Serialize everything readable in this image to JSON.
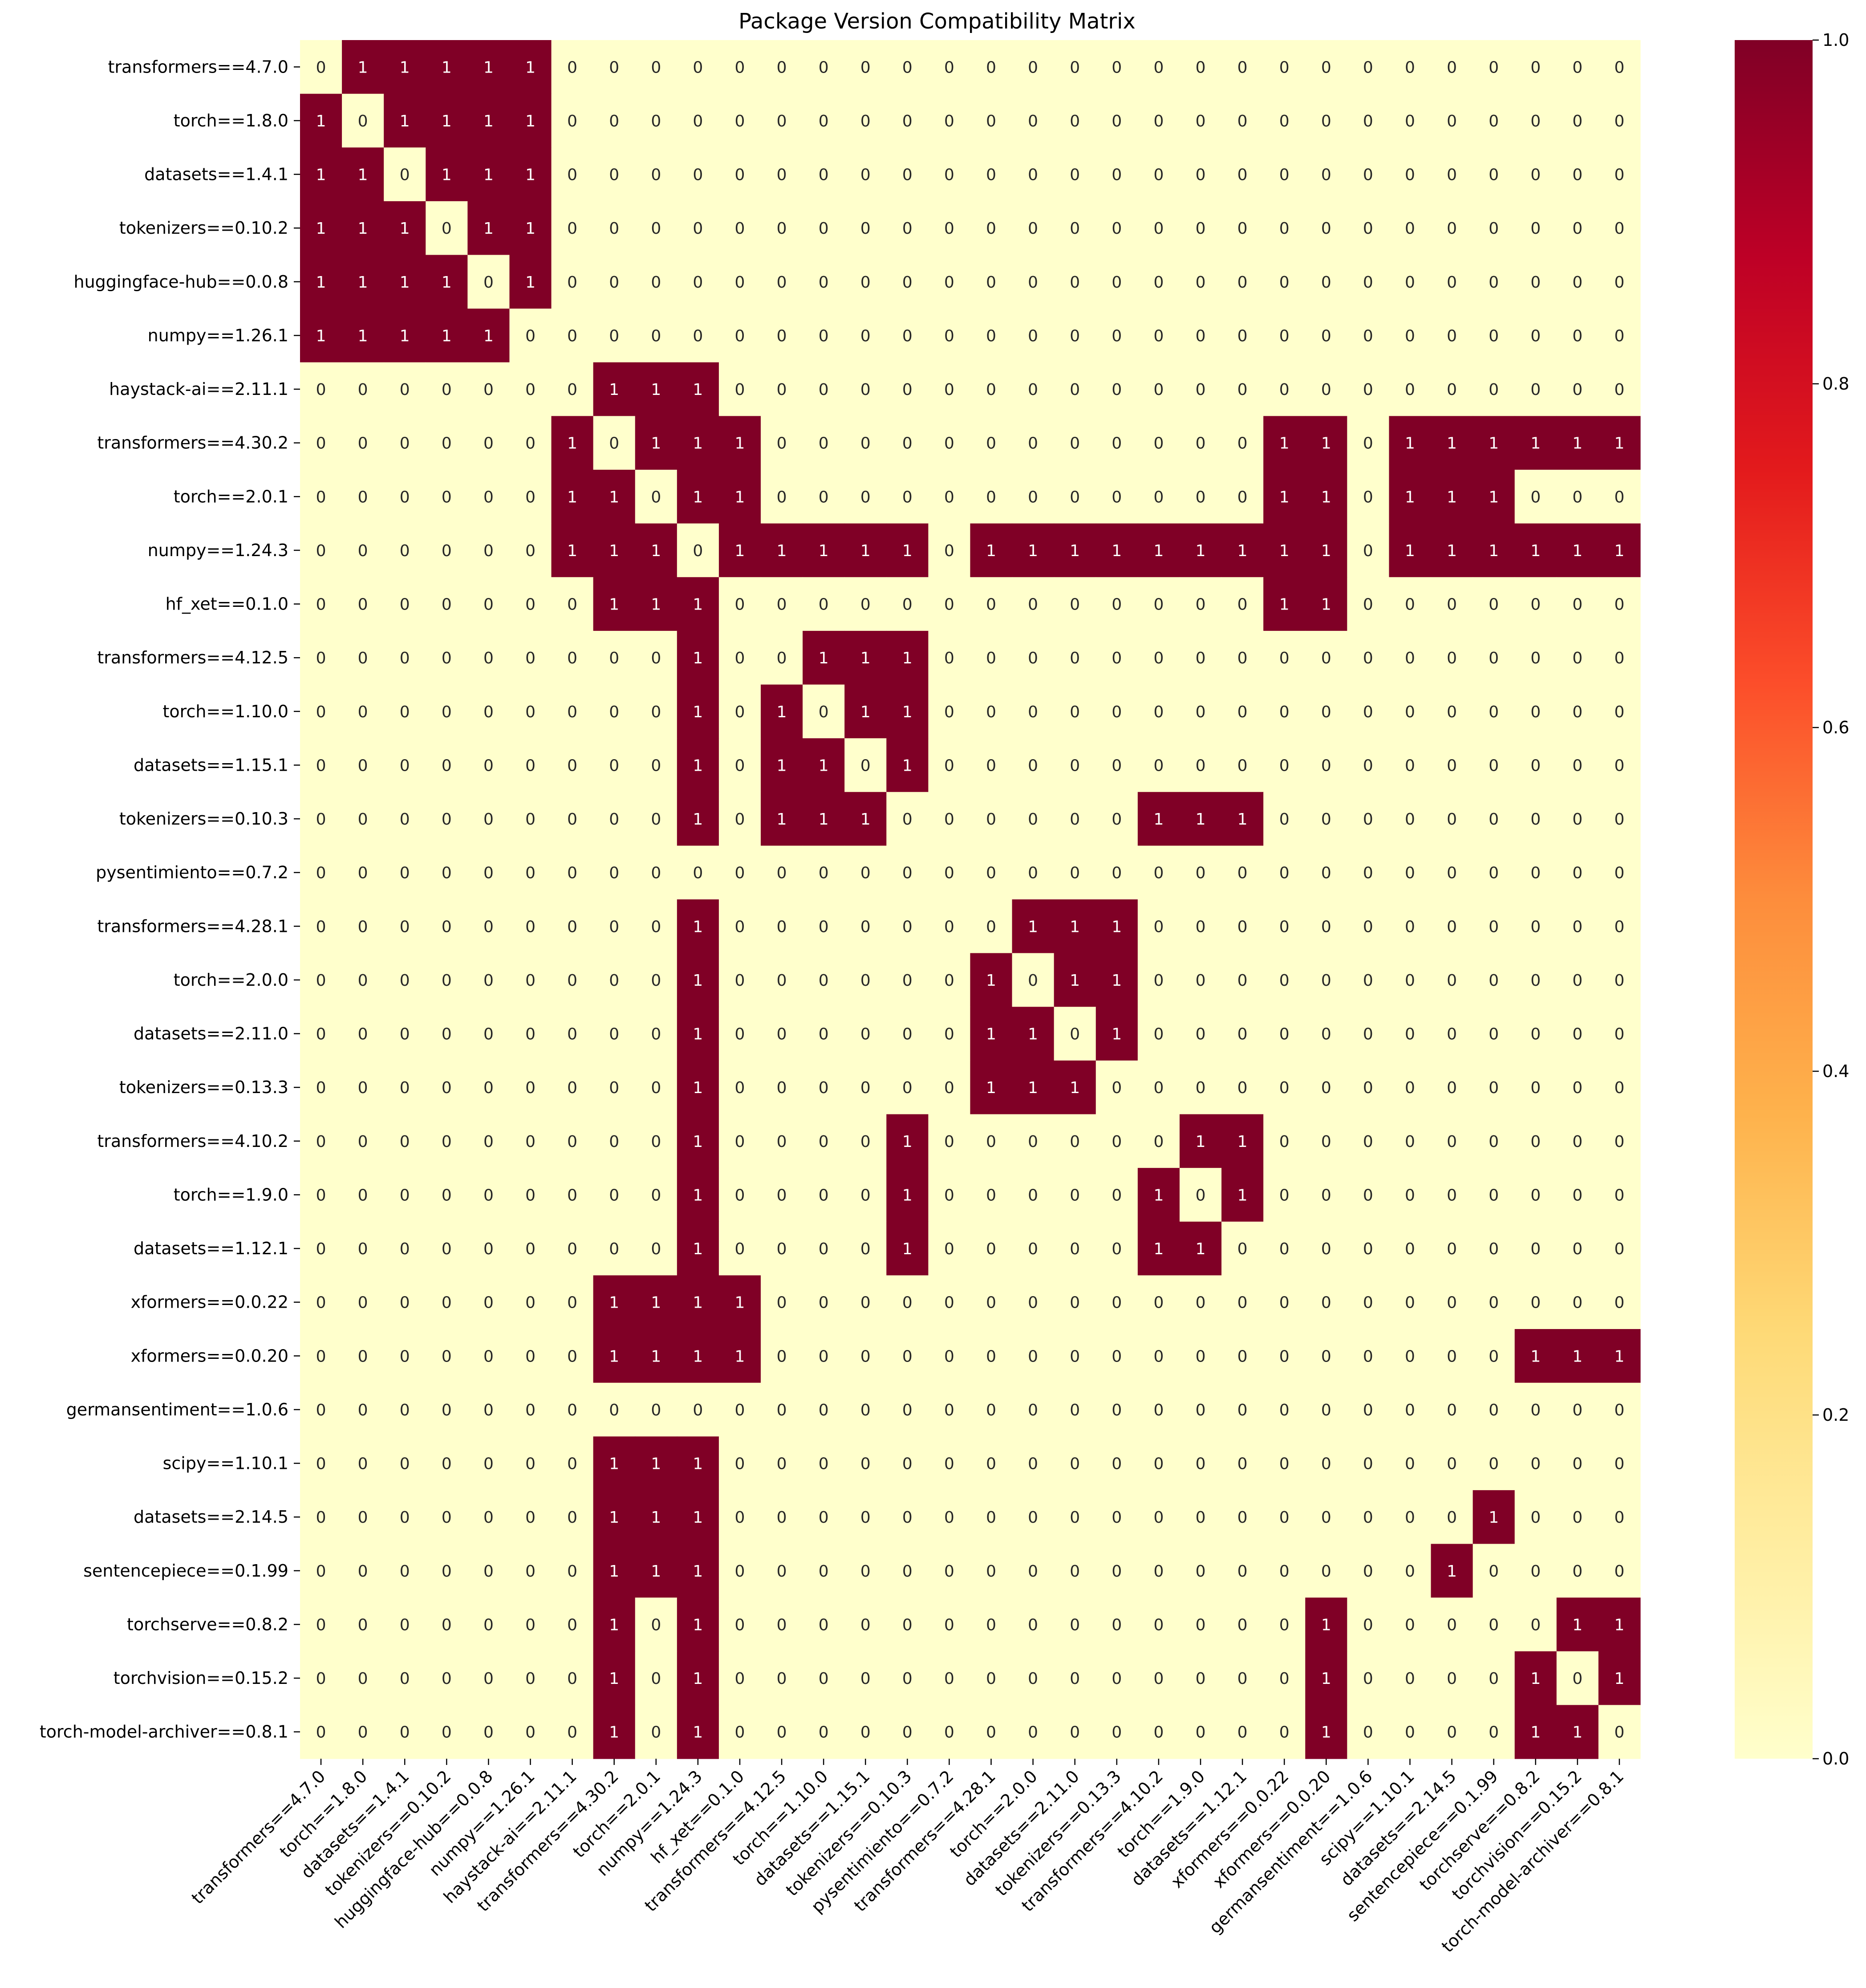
{
  "chart_data": {
    "type": "heatmap",
    "title": "Package Version Compatibility Matrix",
    "xlabel": "",
    "ylabel": "",
    "labels": [
      "transformers==4.7.0",
      "torch==1.8.0",
      "datasets==1.4.1",
      "tokenizers==0.10.2",
      "huggingface-hub==0.0.8",
      "numpy==1.26.1",
      "haystack-ai==2.11.1",
      "transformers==4.30.2",
      "torch==2.0.1",
      "numpy==1.24.3",
      "hf_xet==0.1.0",
      "transformers==4.12.5",
      "torch==1.10.0",
      "datasets==1.15.1",
      "tokenizers==0.10.3",
      "pysentimiento==0.7.2",
      "transformers==4.28.1",
      "torch==2.0.0",
      "datasets==2.11.0",
      "tokenizers==0.13.3",
      "transformers==4.10.2",
      "torch==1.9.0",
      "datasets==1.12.1",
      "xformers==0.0.22",
      "xformers==0.0.20",
      "germansentiment==1.0.6",
      "scipy==1.10.1",
      "datasets==2.14.5",
      "sentencepiece==0.1.99",
      "torchserve==0.8.2",
      "torchvision==0.15.2",
      "torch-model-archiver==0.8.1"
    ],
    "matrix": [
      [
        0,
        1,
        1,
        1,
        1,
        1,
        0,
        0,
        0,
        0,
        0,
        0,
        0,
        0,
        0,
        0,
        0,
        0,
        0,
        0,
        0,
        0,
        0,
        0,
        0,
        0,
        0,
        0,
        0,
        0,
        0,
        0
      ],
      [
        1,
        0,
        1,
        1,
        1,
        1,
        0,
        0,
        0,
        0,
        0,
        0,
        0,
        0,
        0,
        0,
        0,
        0,
        0,
        0,
        0,
        0,
        0,
        0,
        0,
        0,
        0,
        0,
        0,
        0,
        0,
        0
      ],
      [
        1,
        1,
        0,
        1,
        1,
        1,
        0,
        0,
        0,
        0,
        0,
        0,
        0,
        0,
        0,
        0,
        0,
        0,
        0,
        0,
        0,
        0,
        0,
        0,
        0,
        0,
        0,
        0,
        0,
        0,
        0,
        0
      ],
      [
        1,
        1,
        1,
        0,
        1,
        1,
        0,
        0,
        0,
        0,
        0,
        0,
        0,
        0,
        0,
        0,
        0,
        0,
        0,
        0,
        0,
        0,
        0,
        0,
        0,
        0,
        0,
        0,
        0,
        0,
        0,
        0
      ],
      [
        1,
        1,
        1,
        1,
        0,
        1,
        0,
        0,
        0,
        0,
        0,
        0,
        0,
        0,
        0,
        0,
        0,
        0,
        0,
        0,
        0,
        0,
        0,
        0,
        0,
        0,
        0,
        0,
        0,
        0,
        0,
        0
      ],
      [
        1,
        1,
        1,
        1,
        1,
        0,
        0,
        0,
        0,
        0,
        0,
        0,
        0,
        0,
        0,
        0,
        0,
        0,
        0,
        0,
        0,
        0,
        0,
        0,
        0,
        0,
        0,
        0,
        0,
        0,
        0,
        0
      ],
      [
        0,
        0,
        0,
        0,
        0,
        0,
        0,
        1,
        1,
        1,
        0,
        0,
        0,
        0,
        0,
        0,
        0,
        0,
        0,
        0,
        0,
        0,
        0,
        0,
        0,
        0,
        0,
        0,
        0,
        0,
        0,
        0
      ],
      [
        0,
        0,
        0,
        0,
        0,
        0,
        1,
        0,
        1,
        1,
        1,
        0,
        0,
        0,
        0,
        0,
        0,
        0,
        0,
        0,
        0,
        0,
        0,
        1,
        1,
        0,
        1,
        1,
        1,
        1,
        1,
        1
      ],
      [
        0,
        0,
        0,
        0,
        0,
        0,
        1,
        1,
        0,
        1,
        1,
        0,
        0,
        0,
        0,
        0,
        0,
        0,
        0,
        0,
        0,
        0,
        0,
        1,
        1,
        0,
        1,
        1,
        1,
        0,
        0,
        0
      ],
      [
        0,
        0,
        0,
        0,
        0,
        0,
        1,
        1,
        1,
        0,
        1,
        1,
        1,
        1,
        1,
        0,
        1,
        1,
        1,
        1,
        1,
        1,
        1,
        1,
        1,
        0,
        1,
        1,
        1,
        1,
        1,
        1
      ],
      [
        0,
        0,
        0,
        0,
        0,
        0,
        0,
        1,
        1,
        1,
        0,
        0,
        0,
        0,
        0,
        0,
        0,
        0,
        0,
        0,
        0,
        0,
        0,
        1,
        1,
        0,
        0,
        0,
        0,
        0,
        0,
        0
      ],
      [
        0,
        0,
        0,
        0,
        0,
        0,
        0,
        0,
        0,
        1,
        0,
        0,
        1,
        1,
        1,
        0,
        0,
        0,
        0,
        0,
        0,
        0,
        0,
        0,
        0,
        0,
        0,
        0,
        0,
        0,
        0,
        0
      ],
      [
        0,
        0,
        0,
        0,
        0,
        0,
        0,
        0,
        0,
        1,
        0,
        1,
        0,
        1,
        1,
        0,
        0,
        0,
        0,
        0,
        0,
        0,
        0,
        0,
        0,
        0,
        0,
        0,
        0,
        0,
        0,
        0
      ],
      [
        0,
        0,
        0,
        0,
        0,
        0,
        0,
        0,
        0,
        1,
        0,
        1,
        1,
        0,
        1,
        0,
        0,
        0,
        0,
        0,
        0,
        0,
        0,
        0,
        0,
        0,
        0,
        0,
        0,
        0,
        0,
        0
      ],
      [
        0,
        0,
        0,
        0,
        0,
        0,
        0,
        0,
        0,
        1,
        0,
        1,
        1,
        1,
        0,
        0,
        0,
        0,
        0,
        0,
        1,
        1,
        1,
        0,
        0,
        0,
        0,
        0,
        0,
        0,
        0,
        0
      ],
      [
        0,
        0,
        0,
        0,
        0,
        0,
        0,
        0,
        0,
        0,
        0,
        0,
        0,
        0,
        0,
        0,
        0,
        0,
        0,
        0,
        0,
        0,
        0,
        0,
        0,
        0,
        0,
        0,
        0,
        0,
        0,
        0
      ],
      [
        0,
        0,
        0,
        0,
        0,
        0,
        0,
        0,
        0,
        1,
        0,
        0,
        0,
        0,
        0,
        0,
        0,
        1,
        1,
        1,
        0,
        0,
        0,
        0,
        0,
        0,
        0,
        0,
        0,
        0,
        0,
        0
      ],
      [
        0,
        0,
        0,
        0,
        0,
        0,
        0,
        0,
        0,
        1,
        0,
        0,
        0,
        0,
        0,
        0,
        1,
        0,
        1,
        1,
        0,
        0,
        0,
        0,
        0,
        0,
        0,
        0,
        0,
        0,
        0,
        0
      ],
      [
        0,
        0,
        0,
        0,
        0,
        0,
        0,
        0,
        0,
        1,
        0,
        0,
        0,
        0,
        0,
        0,
        1,
        1,
        0,
        1,
        0,
        0,
        0,
        0,
        0,
        0,
        0,
        0,
        0,
        0,
        0,
        0
      ],
      [
        0,
        0,
        0,
        0,
        0,
        0,
        0,
        0,
        0,
        1,
        0,
        0,
        0,
        0,
        0,
        0,
        1,
        1,
        1,
        0,
        0,
        0,
        0,
        0,
        0,
        0,
        0,
        0,
        0,
        0,
        0,
        0
      ],
      [
        0,
        0,
        0,
        0,
        0,
        0,
        0,
        0,
        0,
        1,
        0,
        0,
        0,
        0,
        1,
        0,
        0,
        0,
        0,
        0,
        0,
        1,
        1,
        0,
        0,
        0,
        0,
        0,
        0,
        0,
        0,
        0
      ],
      [
        0,
        0,
        0,
        0,
        0,
        0,
        0,
        0,
        0,
        1,
        0,
        0,
        0,
        0,
        1,
        0,
        0,
        0,
        0,
        0,
        1,
        0,
        1,
        0,
        0,
        0,
        0,
        0,
        0,
        0,
        0,
        0
      ],
      [
        0,
        0,
        0,
        0,
        0,
        0,
        0,
        0,
        0,
        1,
        0,
        0,
        0,
        0,
        1,
        0,
        0,
        0,
        0,
        0,
        1,
        1,
        0,
        0,
        0,
        0,
        0,
        0,
        0,
        0,
        0,
        0
      ],
      [
        0,
        0,
        0,
        0,
        0,
        0,
        0,
        1,
        1,
        1,
        1,
        0,
        0,
        0,
        0,
        0,
        0,
        0,
        0,
        0,
        0,
        0,
        0,
        0,
        0,
        0,
        0,
        0,
        0,
        0,
        0,
        0
      ],
      [
        0,
        0,
        0,
        0,
        0,
        0,
        0,
        1,
        1,
        1,
        1,
        0,
        0,
        0,
        0,
        0,
        0,
        0,
        0,
        0,
        0,
        0,
        0,
        0,
        0,
        0,
        0,
        0,
        0,
        1,
        1,
        1
      ],
      [
        0,
        0,
        0,
        0,
        0,
        0,
        0,
        0,
        0,
        0,
        0,
        0,
        0,
        0,
        0,
        0,
        0,
        0,
        0,
        0,
        0,
        0,
        0,
        0,
        0,
        0,
        0,
        0,
        0,
        0,
        0,
        0
      ],
      [
        0,
        0,
        0,
        0,
        0,
        0,
        0,
        1,
        1,
        1,
        0,
        0,
        0,
        0,
        0,
        0,
        0,
        0,
        0,
        0,
        0,
        0,
        0,
        0,
        0,
        0,
        0,
        0,
        0,
        0,
        0,
        0
      ],
      [
        0,
        0,
        0,
        0,
        0,
        0,
        0,
        1,
        1,
        1,
        0,
        0,
        0,
        0,
        0,
        0,
        0,
        0,
        0,
        0,
        0,
        0,
        0,
        0,
        0,
        0,
        0,
        0,
        1,
        0,
        0,
        0
      ],
      [
        0,
        0,
        0,
        0,
        0,
        0,
        0,
        1,
        1,
        1,
        0,
        0,
        0,
        0,
        0,
        0,
        0,
        0,
        0,
        0,
        0,
        0,
        0,
        0,
        0,
        0,
        0,
        1,
        0,
        0,
        0,
        0
      ],
      [
        0,
        0,
        0,
        0,
        0,
        0,
        0,
        1,
        0,
        1,
        0,
        0,
        0,
        0,
        0,
        0,
        0,
        0,
        0,
        0,
        0,
        0,
        0,
        0,
        1,
        0,
        0,
        0,
        0,
        0,
        1,
        1
      ],
      [
        0,
        0,
        0,
        0,
        0,
        0,
        0,
        1,
        0,
        1,
        0,
        0,
        0,
        0,
        0,
        0,
        0,
        0,
        0,
        0,
        0,
        0,
        0,
        0,
        1,
        0,
        0,
        0,
        0,
        1,
        0,
        1
      ],
      [
        0,
        0,
        0,
        0,
        0,
        0,
        0,
        1,
        0,
        1,
        0,
        0,
        0,
        0,
        0,
        0,
        0,
        0,
        0,
        0,
        0,
        0,
        0,
        0,
        1,
        0,
        0,
        0,
        0,
        1,
        1,
        0
      ]
    ],
    "colorbar": {
      "colormap": "YlOrRd",
      "vmin": 0,
      "vmax": 1,
      "ticks": [
        "0.0",
        "0.2",
        "0.4",
        "0.6",
        "0.8",
        "1.0"
      ],
      "low_color": "#ffffcc",
      "high_color": "#800026"
    },
    "annotations": true,
    "grid": false,
    "legend": "colorbar-right"
  }
}
